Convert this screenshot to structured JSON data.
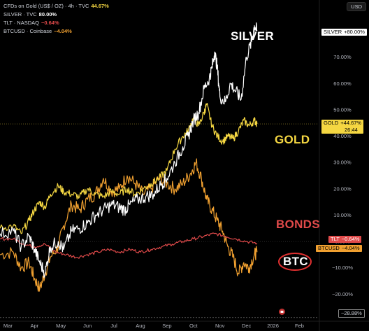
{
  "legend": {
    "items": [
      {
        "label": "CFDs on Gold (US$ / OZ) · 4h · TVC",
        "value": "44.67%",
        "label_color": "#d1d4dc",
        "value_color": "#f5d742"
      },
      {
        "label": "SILVER · TVC",
        "value": "80.00%",
        "label_color": "#d1d4dc",
        "value_color": "#ffffff"
      },
      {
        "label": "TLT · NASDAQ",
        "value": "−0.64%",
        "label_color": "#d1d4dc",
        "value_color": "#e04a4a"
      },
      {
        "label": "BTCUSD · Coinbase",
        "value": "−4.04%",
        "label_color": "#d1d4dc",
        "value_color": "#f0a030"
      }
    ]
  },
  "currency_button": "USD",
  "price_tags": {
    "silver": {
      "sym": "SILVER",
      "val": "+80.00%",
      "bg": "#ffffff",
      "fg": "#000000"
    },
    "gold": {
      "sym": "GOLD",
      "val": "+44.67%",
      "sub": "26:44",
      "bg": "#f5d742",
      "fg": "#000000"
    },
    "tlt": {
      "sym": "TLT",
      "val": "−0.64%",
      "bg": "#e04a4a",
      "fg": "#ffffff"
    },
    "btc": {
      "sym": "BTCUSD",
      "val": "−4.04%",
      "bg": "#f0a030",
      "fg": "#000000"
    },
    "low": {
      "val": "−28.88%"
    }
  },
  "annotations": {
    "silver": "SILVER",
    "gold": "GOLD",
    "bonds": "BONDS",
    "btc": "BTC"
  },
  "chart_data": {
    "type": "line",
    "y_unit": "percent change",
    "ylim": [
      -30,
      88
    ],
    "y_ticks": [
      70,
      60,
      50,
      40,
      30,
      20,
      10,
      0,
      -10,
      -20
    ],
    "y_tick_labels": [
      "70.00%",
      "60.00%",
      "50.00%",
      "40.00%",
      "30.00%",
      "20.00%",
      "10.00%",
      "0.00%",
      "−10.00%",
      "−20.00%"
    ],
    "x_ticks": [
      "Mar",
      "Apr",
      "May",
      "Jun",
      "Jul",
      "Aug",
      "Sep",
      "Oct",
      "Nov",
      "Dec",
      "2026",
      "Feb"
    ],
    "x_tick_pos": [
      0,
      1,
      2,
      3,
      4,
      5,
      6,
      7,
      8,
      9,
      10,
      11
    ],
    "x_range": [
      -0.3,
      11.7
    ],
    "grid": false,
    "series": [
      {
        "name": "SILVER",
        "color": "#ffffff",
        "points": [
          [
            -0.3,
            3
          ],
          [
            0.2,
            4
          ],
          [
            0.5,
            -2
          ],
          [
            0.8,
            2
          ],
          [
            1.0,
            -3
          ],
          [
            1.2,
            -8
          ],
          [
            1.4,
            -12
          ],
          [
            1.6,
            -2
          ],
          [
            1.9,
            0
          ],
          [
            2.1,
            -3
          ],
          [
            2.4,
            4
          ],
          [
            2.7,
            5
          ],
          [
            3.0,
            7
          ],
          [
            3.3,
            10
          ],
          [
            3.6,
            12
          ],
          [
            3.9,
            14
          ],
          [
            4.2,
            13
          ],
          [
            4.4,
            12
          ],
          [
            4.6,
            14
          ],
          [
            4.9,
            16
          ],
          [
            5.2,
            17
          ],
          [
            5.5,
            18
          ],
          [
            5.8,
            22
          ],
          [
            6.0,
            24
          ],
          [
            6.3,
            30
          ],
          [
            6.6,
            36
          ],
          [
            6.8,
            40
          ],
          [
            7.0,
            46
          ],
          [
            7.2,
            49
          ],
          [
            7.4,
            58
          ],
          [
            7.6,
            62
          ],
          [
            7.7,
            66
          ],
          [
            7.8,
            72
          ],
          [
            7.9,
            66
          ],
          [
            8.0,
            55
          ],
          [
            8.2,
            53
          ],
          [
            8.4,
            60
          ],
          [
            8.6,
            57
          ],
          [
            8.8,
            54
          ],
          [
            9.0,
            70
          ],
          [
            9.2,
            76
          ],
          [
            9.3,
            82
          ],
          [
            9.4,
            80
          ]
        ]
      },
      {
        "name": "GOLD",
        "color": "#f5d742",
        "points": [
          [
            -0.3,
            5
          ],
          [
            0.2,
            6
          ],
          [
            0.5,
            3
          ],
          [
            0.8,
            8
          ],
          [
            1.0,
            12
          ],
          [
            1.2,
            15
          ],
          [
            1.4,
            13
          ],
          [
            1.6,
            18
          ],
          [
            1.9,
            21
          ],
          [
            2.1,
            19
          ],
          [
            2.4,
            18
          ],
          [
            2.7,
            17
          ],
          [
            3.0,
            20
          ],
          [
            3.3,
            18
          ],
          [
            3.6,
            17
          ],
          [
            3.9,
            19
          ],
          [
            4.2,
            18
          ],
          [
            4.5,
            20
          ],
          [
            4.8,
            18
          ],
          [
            5.1,
            20
          ],
          [
            5.4,
            22
          ],
          [
            5.7,
            24
          ],
          [
            6.0,
            27
          ],
          [
            6.3,
            35
          ],
          [
            6.6,
            40
          ],
          [
            6.8,
            42
          ],
          [
            7.0,
            47
          ],
          [
            7.2,
            44
          ],
          [
            7.4,
            49
          ],
          [
            7.5,
            52
          ],
          [
            7.7,
            44
          ],
          [
            7.9,
            40
          ],
          [
            8.1,
            38
          ],
          [
            8.3,
            40
          ],
          [
            8.5,
            39
          ],
          [
            8.7,
            42
          ],
          [
            8.9,
            46
          ],
          [
            9.1,
            44
          ],
          [
            9.3,
            46
          ],
          [
            9.4,
            44.67
          ]
        ]
      },
      {
        "name": "TLT",
        "color": "#e04a4a",
        "points": [
          [
            -0.3,
            1
          ],
          [
            0.2,
            1
          ],
          [
            0.6,
            -1
          ],
          [
            1.0,
            -2
          ],
          [
            1.4,
            -1
          ],
          [
            1.8,
            -4
          ],
          [
            2.2,
            -5
          ],
          [
            2.6,
            -6
          ],
          [
            3.0,
            -5
          ],
          [
            3.4,
            -4
          ],
          [
            3.8,
            -3
          ],
          [
            4.2,
            -4
          ],
          [
            4.6,
            -3
          ],
          [
            5.0,
            -4
          ],
          [
            5.4,
            -3
          ],
          [
            5.8,
            -2
          ],
          [
            6.2,
            -1
          ],
          [
            6.6,
            0
          ],
          [
            7.0,
            1
          ],
          [
            7.4,
            2
          ],
          [
            7.8,
            3
          ],
          [
            8.2,
            2
          ],
          [
            8.6,
            1
          ],
          [
            9.0,
            0
          ],
          [
            9.4,
            -0.64
          ]
        ]
      },
      {
        "name": "BTCUSD",
        "color": "#f0a030",
        "points": [
          [
            -0.3,
            -5
          ],
          [
            0.2,
            -4
          ],
          [
            0.5,
            -10
          ],
          [
            0.8,
            -8
          ],
          [
            1.0,
            -14
          ],
          [
            1.2,
            -18
          ],
          [
            1.4,
            -12
          ],
          [
            1.6,
            -6
          ],
          [
            1.9,
            -2
          ],
          [
            2.1,
            6
          ],
          [
            2.4,
            14
          ],
          [
            2.7,
            12
          ],
          [
            3.0,
            16
          ],
          [
            3.3,
            18
          ],
          [
            3.6,
            24
          ],
          [
            3.9,
            19
          ],
          [
            4.2,
            20
          ],
          [
            4.5,
            25
          ],
          [
            4.8,
            22
          ],
          [
            5.1,
            18
          ],
          [
            5.4,
            20
          ],
          [
            5.7,
            24
          ],
          [
            6.0,
            22
          ],
          [
            6.3,
            20
          ],
          [
            6.6,
            22
          ],
          [
            6.9,
            26
          ],
          [
            7.1,
            30
          ],
          [
            7.3,
            24
          ],
          [
            7.5,
            16
          ],
          [
            7.7,
            12
          ],
          [
            7.9,
            8
          ],
          [
            8.1,
            4
          ],
          [
            8.3,
            -2
          ],
          [
            8.5,
            -6
          ],
          [
            8.7,
            -12
          ],
          [
            8.9,
            -8
          ],
          [
            9.1,
            -10
          ],
          [
            9.3,
            -5
          ],
          [
            9.4,
            -4.04
          ]
        ]
      }
    ]
  }
}
